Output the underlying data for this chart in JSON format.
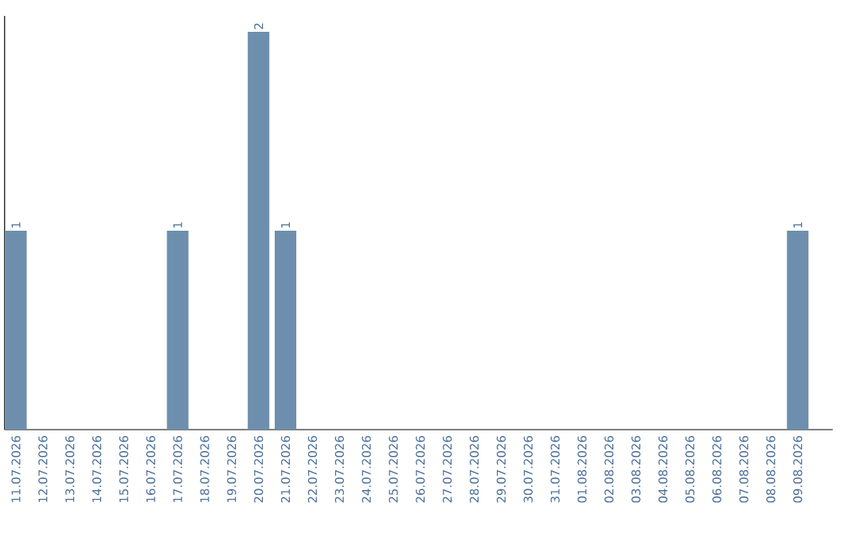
{
  "chart_data": {
    "type": "bar",
    "categories": [
      "11.07.2026",
      "12.07.2026",
      "13.07.2026",
      "14.07.2026",
      "15.07.2026",
      "16.07.2026",
      "17.07.2026",
      "18.07.2026",
      "19.07.2026",
      "20.07.2026",
      "21.07.2026",
      "22.07.2026",
      "23.07.2026",
      "24.07.2026",
      "25.07.2026",
      "26.07.2026",
      "27.07.2026",
      "28.07.2026",
      "29.07.2026",
      "30.07.2026",
      "31.07.2026",
      "01.08.2026",
      "02.08.2026",
      "03.08.2026",
      "04.08.2026",
      "05.08.2026",
      "06.08.2026",
      "07.08.2026",
      "08.08.2026",
      "09.08.2026"
    ],
    "values": [
      1,
      0,
      0,
      0,
      0,
      0,
      1,
      0,
      0,
      2,
      1,
      0,
      0,
      0,
      0,
      0,
      0,
      0,
      0,
      0,
      0,
      0,
      0,
      0,
      0,
      0,
      0,
      0,
      0,
      1
    ],
    "value_labels": [
      "1",
      null,
      null,
      null,
      null,
      null,
      "1",
      null,
      null,
      "2",
      "1",
      null,
      null,
      null,
      null,
      null,
      null,
      null,
      null,
      null,
      null,
      null,
      null,
      null,
      null,
      null,
      null,
      null,
      null,
      "1"
    ],
    "color": "#6d8fad"
  }
}
